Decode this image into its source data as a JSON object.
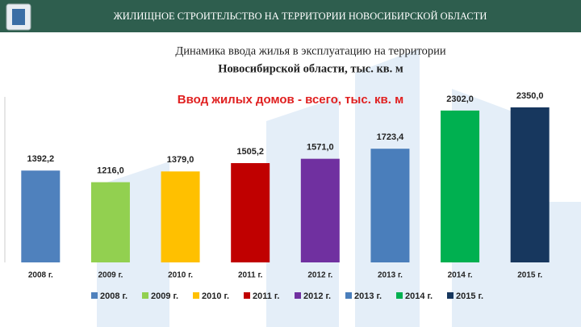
{
  "header": {
    "title": "ЖИЛИЩНОЕ СТРОИТЕЛЬСТВО НА ТЕРРИТОРИИ НОВОСИБИРСКОЙ ОБЛАСТИ"
  },
  "chart_data": {
    "type": "bar",
    "title": [
      "Динамика ввода жилья в эксплуатацию на территории",
      "Новосибирской области, тыс. кв. м"
    ],
    "subtitle": "Ввод жилых домов - всего, тыс. кв. м",
    "categories": [
      "2008 г.",
      "2009 г.",
      "2010 г.",
      "2011 г.",
      "2012 г.",
      "2013 г.",
      "2014 г.",
      "2015 г."
    ],
    "values": [
      1392.2,
      1216.0,
      1379.0,
      1505.2,
      1571.0,
      1723.4,
      2302.0,
      2350.0
    ],
    "value_labels": [
      "1392,2",
      "1216,0",
      "1379,0",
      "1505,2",
      "1571,0",
      "1723,4",
      "2302,0",
      "2350,0"
    ],
    "colors": [
      "#4f81bd",
      "#92d050",
      "#ffc000",
      "#c00000",
      "#7030a0",
      "#4a7ebb",
      "#00b050",
      "#17375e"
    ]
  }
}
